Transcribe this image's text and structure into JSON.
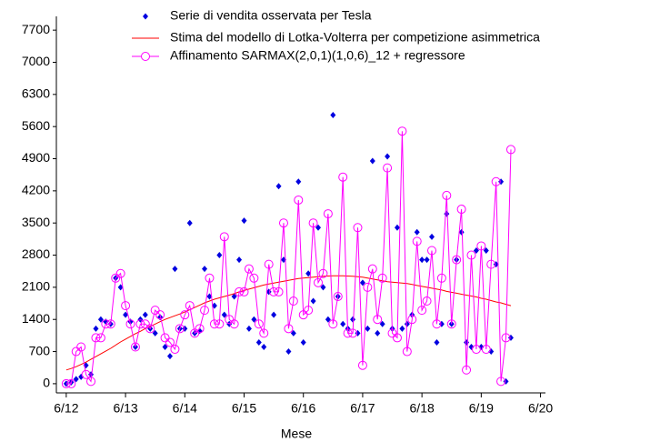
{
  "chart_data": {
    "type": "scatter-line",
    "xlabel": "Mese",
    "x": [
      "2012-06",
      "2012-07",
      "2012-08",
      "2012-09",
      "2012-10",
      "2012-11",
      "2012-12",
      "2013-01",
      "2013-02",
      "2013-03",
      "2013-04",
      "2013-05",
      "2013-06",
      "2013-07",
      "2013-08",
      "2013-09",
      "2013-10",
      "2013-11",
      "2013-12",
      "2014-01",
      "2014-02",
      "2014-03",
      "2014-04",
      "2014-05",
      "2014-06",
      "2014-07",
      "2014-08",
      "2014-09",
      "2014-10",
      "2014-11",
      "2014-12",
      "2015-01",
      "2015-02",
      "2015-03",
      "2015-04",
      "2015-05",
      "2015-06",
      "2015-07",
      "2015-08",
      "2015-09",
      "2015-10",
      "2015-11",
      "2015-12",
      "2016-01",
      "2016-02",
      "2016-03",
      "2016-04",
      "2016-05",
      "2016-06",
      "2016-07",
      "2016-08",
      "2016-09",
      "2016-10",
      "2016-11",
      "2016-12",
      "2017-01",
      "2017-02",
      "2017-03",
      "2017-04",
      "2017-05",
      "2017-06",
      "2017-07",
      "2017-08",
      "2017-09",
      "2017-10",
      "2017-11",
      "2017-12",
      "2018-01",
      "2018-02",
      "2018-03",
      "2018-04",
      "2018-05",
      "2018-06",
      "2018-07",
      "2018-08",
      "2018-09",
      "2018-10",
      "2018-11",
      "2018-12",
      "2019-01",
      "2019-02",
      "2019-03",
      "2019-04",
      "2019-05",
      "2019-06",
      "2019-07",
      "2019-08",
      "2019-09",
      "2019-10",
      "2019-11",
      "2019-12"
    ],
    "series": [
      {
        "name": "Serie di vendita osservata per Tesla",
        "color": "#0000e0",
        "marker": "diamond",
        "values": [
          0,
          30,
          100,
          150,
          400,
          200,
          1200,
          1400,
          1350,
          1300,
          2300,
          2100,
          1500,
          1350,
          800,
          1400,
          1500,
          1200,
          1100,
          1450,
          800,
          600,
          2500,
          1200,
          1200,
          3500,
          1100,
          1150,
          2500,
          1900,
          1700,
          2800,
          1500,
          1300,
          1900,
          2700,
          3550,
          1200,
          1400,
          900,
          800,
          2000,
          1500,
          4300,
          2700,
          700,
          1100,
          4400,
          900,
          2400,
          1800,
          3400,
          2100,
          1400,
          5850,
          1900,
          1300,
          1200,
          1400,
          1100,
          2200,
          1200,
          4850,
          1100,
          1300,
          4950,
          1200,
          3400,
          1200,
          1300,
          1500,
          3300,
          2700,
          2700,
          3200,
          900,
          1300,
          3700,
          1300,
          2700,
          3300,
          900,
          800,
          2900,
          800,
          2900,
          700,
          2600,
          4400,
          50,
          1000
        ]
      },
      {
        "name": "Stima del modello di Lotka-Volterra per competizione asimmetrica",
        "color": "#ff0000",
        "marker": "none",
        "values": [
          300,
          330,
          370,
          420,
          470,
          530,
          590,
          650,
          710,
          770,
          840,
          910,
          970,
          1030,
          1090,
          1140,
          1200,
          1250,
          1300,
          1350,
          1400,
          1440,
          1480,
          1520,
          1560,
          1610,
          1660,
          1710,
          1760,
          1800,
          1840,
          1870,
          1900,
          1930,
          1960,
          2000,
          2030,
          2060,
          2090,
          2120,
          2150,
          2170,
          2190,
          2210,
          2230,
          2250,
          2270,
          2290,
          2300,
          2310,
          2320,
          2330,
          2340,
          2345,
          2350,
          2350,
          2350,
          2345,
          2340,
          2330,
          2320,
          2300,
          2280,
          2260,
          2240,
          2220,
          2210,
          2200,
          2190,
          2180,
          2160,
          2140,
          2120,
          2100,
          2080,
          2060,
          2040,
          2010,
          1990,
          1970,
          1950,
          1930,
          1910,
          1890,
          1860,
          1840,
          1810,
          1780,
          1760,
          1730,
          1700
        ]
      },
      {
        "name": "Affinamento SARMAX(2,0,1)(1,0,6)_12 + regressore",
        "color": "#ff00ff",
        "marker": "circle",
        "values": [
          0,
          0,
          700,
          800,
          200,
          50,
          1000,
          1000,
          1300,
          1300,
          2300,
          2400,
          1700,
          1300,
          800,
          1300,
          1300,
          1200,
          1600,
          1500,
          1000,
          900,
          750,
          1200,
          1500,
          1700,
          1100,
          1200,
          1600,
          2300,
          1300,
          1300,
          3200,
          1400,
          1300,
          2000,
          2000,
          2500,
          2300,
          1300,
          1100,
          2600,
          2000,
          2000,
          3500,
          1200,
          1800,
          4000,
          1500,
          1600,
          3500,
          2200,
          2400,
          3700,
          1300,
          1900,
          4500,
          1100,
          1100,
          3400,
          400,
          2100,
          2500,
          1400,
          2300,
          4700,
          1100,
          1000,
          5500,
          700,
          1400,
          3100,
          1600,
          1800,
          2900,
          1300,
          2300,
          4100,
          1300,
          2700,
          3800,
          300,
          2800,
          750,
          3000,
          750,
          2600,
          4400,
          50,
          1000,
          5100
        ]
      }
    ],
    "xlim": [
      "2012-04",
      "2020-07"
    ],
    "xticks": [
      {
        "value": "2012-06",
        "label": "6/12"
      },
      {
        "value": "2013-06",
        "label": "6/13"
      },
      {
        "value": "2014-06",
        "label": "6/14"
      },
      {
        "value": "2015-06",
        "label": "6/15"
      },
      {
        "value": "2016-06",
        "label": "6/16"
      },
      {
        "value": "2017-06",
        "label": "6/17"
      },
      {
        "value": "2018-06",
        "label": "6/18"
      },
      {
        "value": "2019-06",
        "label": "6/19"
      },
      {
        "value": "2020-06",
        "label": "6/20"
      }
    ],
    "ylim": [
      -200,
      8000
    ],
    "yticks": [
      0,
      700,
      1400,
      2100,
      2800,
      3500,
      4200,
      4900,
      5600,
      6300,
      7000,
      7700
    ],
    "grid": false,
    "legend": "top"
  }
}
